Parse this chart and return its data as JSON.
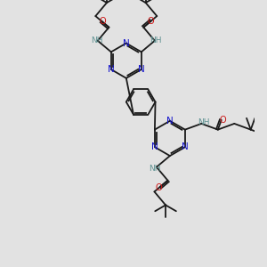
{
  "bg_color": "#e2e2e2",
  "bond_color": "#1a1a1a",
  "N_color": "#1515cc",
  "O_color": "#cc1515",
  "NH_color": "#5c9090",
  "lw": 1.3,
  "fig_w": 3.0,
  "fig_h": 3.0,
  "dpi": 100,
  "xlim": [
    -1.5,
    8.5
  ],
  "ylim": [
    -1.5,
    9.5
  ],
  "triazine_r": 0.72,
  "benzene_r": 0.6,
  "utx": 3.2,
  "uty": 7.0,
  "ltx": 5.0,
  "lty": 3.8,
  "bx": 3.8,
  "by": 5.3
}
